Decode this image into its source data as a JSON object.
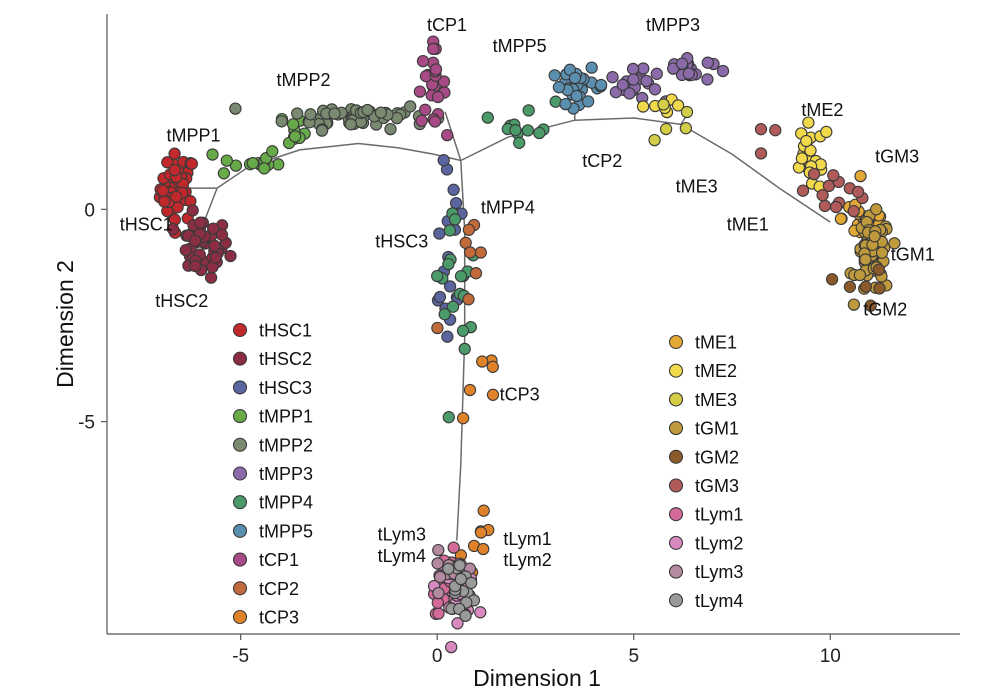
{
  "chart_data": {
    "type": "scatter",
    "title": "",
    "xlabel": "Dimension 1",
    "ylabel": "Dimension 2",
    "xlim": [
      -8.4,
      13.3
    ],
    "ylim": [
      -10.0,
      4.6
    ],
    "xticks": [
      -5,
      0,
      5,
      10
    ],
    "yticks": [
      -5,
      0
    ],
    "grid": false,
    "legend_placement": "inside, two columns (left and center-right)",
    "series": [
      {
        "name": "tHSC1",
        "color": "#c0282b",
        "clusters": [
          {
            "cx": -6.6,
            "cy": 0.5,
            "sx": 0.22,
            "sy": 0.4,
            "n": 48
          }
        ]
      },
      {
        "name": "tHSC2",
        "color": "#8b2e43",
        "clusters": [
          {
            "cx": -6.0,
            "cy": -0.9,
            "sx": 0.35,
            "sy": 0.35,
            "n": 46
          }
        ]
      },
      {
        "name": "tHSC3",
        "color": "#5a65a0",
        "clusters": [
          {
            "cx": 0.4,
            "cy": -0.8,
            "sx": 0.2,
            "sy": 0.9,
            "n": 14
          },
          {
            "cx": 0.3,
            "cy": -2.5,
            "sx": 0.15,
            "sy": 0.4,
            "n": 5
          }
        ]
      },
      {
        "name": "tMPP1",
        "color": "#66aa4a",
        "clusters": [
          {
            "cx": -4.8,
            "cy": 1.1,
            "sx": 0.4,
            "sy": 0.18,
            "n": 14
          },
          {
            "cx": -3.8,
            "cy": 1.9,
            "sx": 0.4,
            "sy": 0.2,
            "n": 10
          }
        ]
      },
      {
        "name": "tMPP2",
        "color": "#7a8a70",
        "clusters": [
          {
            "cx": -2.0,
            "cy": 2.2,
            "sx": 0.9,
            "sy": 0.15,
            "n": 55
          }
        ]
      },
      {
        "name": "tMPP3",
        "color": "#8a6aa8",
        "clusters": [
          {
            "cx": 5.0,
            "cy": 2.9,
            "sx": 0.3,
            "sy": 0.18,
            "n": 22
          },
          {
            "cx": 6.3,
            "cy": 3.3,
            "sx": 0.35,
            "sy": 0.15,
            "n": 22
          }
        ]
      },
      {
        "name": "tMPP4",
        "color": "#4a9a6a",
        "clusters": [
          {
            "cx": 2.3,
            "cy": 2.1,
            "sx": 0.35,
            "sy": 0.25,
            "n": 12
          },
          {
            "cx": 0.5,
            "cy": -1.3,
            "sx": 0.25,
            "sy": 0.7,
            "n": 12
          },
          {
            "cx": 0.5,
            "cy": -3.2,
            "sx": 0.2,
            "sy": 0.5,
            "n": 6
          }
        ]
      },
      {
        "name": "tMPP5",
        "color": "#5a8fb0",
        "clusters": [
          {
            "cx": 3.6,
            "cy": 2.9,
            "sx": 0.35,
            "sy": 0.2,
            "n": 32
          }
        ]
      },
      {
        "name": "tCP1",
        "color": "#a84a85",
        "clusters": [
          {
            "cx": -0.15,
            "cy": 2.9,
            "sx": 0.18,
            "sy": 0.45,
            "n": 26
          }
        ]
      },
      {
        "name": "tCP2",
        "color": "#c36a3a",
        "clusters": [
          {
            "cx": 1.0,
            "cy": -1.5,
            "sx": 0.5,
            "sy": 0.7,
            "n": 8
          }
        ]
      },
      {
        "name": "tCP3",
        "color": "#e0822a",
        "clusters": [
          {
            "cx": 1.1,
            "cy": -4.2,
            "sx": 0.3,
            "sy": 0.6,
            "n": 6
          },
          {
            "cx": 1.0,
            "cy": -7.6,
            "sx": 0.25,
            "sy": 0.9,
            "n": 8
          }
        ]
      },
      {
        "name": "tME1",
        "color": "#e4a835",
        "clusters": [
          {
            "cx": 10.9,
            "cy": -0.2,
            "sx": 0.3,
            "sy": 0.3,
            "n": 22
          }
        ]
      },
      {
        "name": "tME2",
        "color": "#f1d94b",
        "clusters": [
          {
            "cx": 9.5,
            "cy": 1.2,
            "sx": 0.25,
            "sy": 0.4,
            "n": 24
          },
          {
            "cx": 5.5,
            "cy": 2.2,
            "sx": 0.4,
            "sy": 0.3,
            "n": 6
          }
        ]
      },
      {
        "name": "tME3",
        "color": "#d3ce46",
        "clusters": [
          {
            "cx": 6.0,
            "cy": 2.0,
            "sx": 0.5,
            "sy": 0.25,
            "n": 5
          }
        ]
      },
      {
        "name": "tGM1",
        "color": "#bf9a3c",
        "clusters": [
          {
            "cx": 11.1,
            "cy": -1.1,
            "sx": 0.22,
            "sy": 0.45,
            "n": 60
          }
        ]
      },
      {
        "name": "tGM2",
        "color": "#8a5a2a",
        "clusters": [
          {
            "cx": 10.9,
            "cy": -1.9,
            "sx": 0.3,
            "sy": 0.25,
            "n": 6
          }
        ]
      },
      {
        "name": "tGM3",
        "color": "#b05a5a",
        "clusters": [
          {
            "cx": 10.2,
            "cy": 0.5,
            "sx": 0.4,
            "sy": 0.3,
            "n": 14
          },
          {
            "cx": 8.2,
            "cy": 1.6,
            "sx": 0.3,
            "sy": 0.2,
            "n": 3
          }
        ]
      },
      {
        "name": "tLym1",
        "color": "#d46a9a",
        "clusters": [
          {
            "cx": 0.3,
            "cy": -8.8,
            "sx": 0.2,
            "sy": 0.35,
            "n": 22
          }
        ]
      },
      {
        "name": "tLym2",
        "color": "#d88ac0",
        "clusters": [
          {
            "cx": 0.5,
            "cy": -8.9,
            "sx": 0.25,
            "sy": 0.35,
            "n": 26
          }
        ]
      },
      {
        "name": "tLym3",
        "color": "#b48aa0",
        "clusters": [
          {
            "cx": 0.2,
            "cy": -8.7,
            "sx": 0.2,
            "sy": 0.3,
            "n": 14
          }
        ]
      },
      {
        "name": "tLym4",
        "color": "#9a9a9a",
        "clusters": [
          {
            "cx": 0.6,
            "cy": -8.9,
            "sx": 0.2,
            "sy": 0.3,
            "n": 16
          }
        ]
      }
    ],
    "trajectory": [
      [
        [
          -6.6,
          0.5
        ],
        [
          -5.6,
          0.5
        ],
        [
          -4.8,
          1.0
        ],
        [
          -3.5,
          1.4
        ],
        [
          -2.0,
          1.55
        ],
        [
          -1.0,
          1.45
        ],
        [
          -0.1,
          1.3
        ],
        [
          0.6,
          1.15
        ],
        [
          1.8,
          1.7
        ],
        [
          3.5,
          2.1
        ],
        [
          5.0,
          2.15
        ],
        [
          6.2,
          2.0
        ],
        [
          7.5,
          1.3
        ],
        [
          8.7,
          0.5
        ],
        [
          10.0,
          -0.3
        ]
      ],
      [
        [
          0.6,
          1.15
        ],
        [
          0.7,
          -0.5
        ],
        [
          0.7,
          -3.0
        ],
        [
          0.6,
          -6.0
        ],
        [
          0.5,
          -7.8
        ]
      ],
      [
        [
          -5.6,
          0.5
        ],
        [
          -6.1,
          -0.7
        ]
      ],
      [
        [
          0.6,
          1.15
        ],
        [
          0.2,
          2.3
        ]
      ],
      [
        [
          3.5,
          2.1
        ],
        [
          3.5,
          2.4
        ]
      ],
      [
        [
          6.2,
          2.0
        ],
        [
          6.4,
          2.3
        ]
      ]
    ],
    "annotations": [
      {
        "text": "tCP1",
        "x": 0.25,
        "y": 4.2
      },
      {
        "text": "tMPP5",
        "x": 2.1,
        "y": 3.7
      },
      {
        "text": "tMPP3",
        "x": 6.0,
        "y": 4.2
      },
      {
        "text": "tMPP2",
        "x": -3.4,
        "y": 2.9
      },
      {
        "text": "tMPP1",
        "x": -6.2,
        "y": 1.6
      },
      {
        "text": "tHSC1",
        "x": -7.4,
        "y": -0.5
      },
      {
        "text": "tHSC2",
        "x": -6.5,
        "y": -2.3
      },
      {
        "text": "tHSC3",
        "x": -0.9,
        "y": -0.9
      },
      {
        "text": "tMPP4",
        "x": 1.8,
        "y": -0.1
      },
      {
        "text": "tCP2",
        "x": 4.2,
        "y": 1.0
      },
      {
        "text": "tME3",
        "x": 6.6,
        "y": 0.4
      },
      {
        "text": "tME1",
        "x": 7.9,
        "y": -0.5
      },
      {
        "text": "tME2",
        "x": 9.8,
        "y": 2.2
      },
      {
        "text": "tGM3",
        "x": 11.7,
        "y": 1.1
      },
      {
        "text": "tGM1",
        "x": 12.1,
        "y": -1.2
      },
      {
        "text": "tGM2",
        "x": 11.4,
        "y": -2.5
      },
      {
        "text": "tCP3",
        "x": 2.1,
        "y": -4.5
      },
      {
        "text": "tLym3",
        "x": -0.9,
        "y": -7.8
      },
      {
        "text": "tLym4",
        "x": -0.9,
        "y": -8.3
      },
      {
        "text": "tLym1",
        "x": 2.3,
        "y": -7.9
      },
      {
        "text": "tLym2",
        "x": 2.3,
        "y": -8.4
      }
    ],
    "legend_columns": [
      [
        "tHSC1",
        "tHSC2",
        "tHSC3",
        "tMPP1",
        "tMPP2",
        "tMPP3",
        "tMPP4",
        "tMPP5",
        "tCP1",
        "tCP2",
        "tCP3"
      ],
      [
        "tME1",
        "tME2",
        "tME3",
        "tGM1",
        "tGM2",
        "tGM3",
        "tLym1",
        "tLym2",
        "tLym3",
        "tLym4"
      ]
    ]
  }
}
